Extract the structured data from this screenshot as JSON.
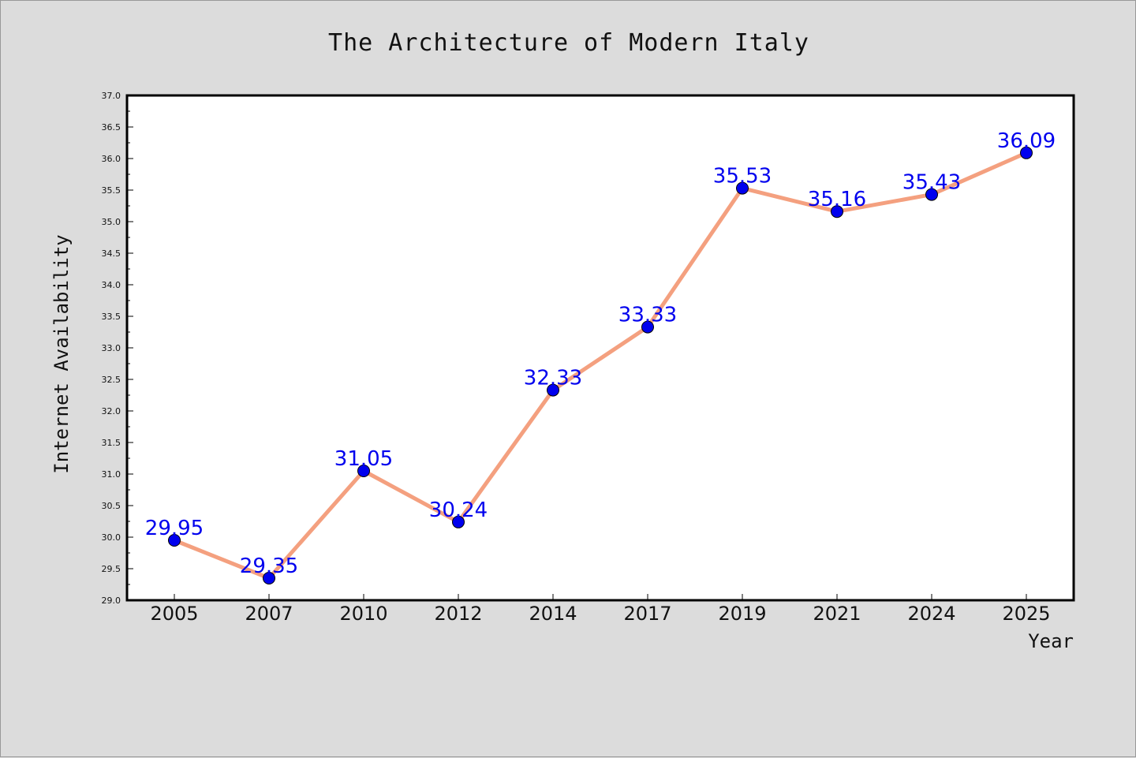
{
  "chart_data": {
    "type": "line",
    "title": "The Architecture of Modern Italy",
    "xlabel": "Year",
    "ylabel": "Internet Availability",
    "categories": [
      "2005",
      "2007",
      "2010",
      "2012",
      "2014",
      "2017",
      "2019",
      "2021",
      "2024",
      "2025"
    ],
    "series": [
      {
        "values": [
          29.95,
          29.35,
          31.05,
          30.24,
          32.33,
          33.33,
          35.53,
          35.16,
          35.43,
          36.09
        ],
        "data_labels": [
          "29.95",
          "29.35",
          "31.05",
          "30.24",
          "32.33",
          "33.33",
          "35.53",
          "35.16",
          "35.43",
          "36.09"
        ],
        "line_color": "#f4a07f",
        "marker_color": "#0000ee",
        "label_color": "#0000ee"
      }
    ],
    "ylim": [
      29.0,
      37.0
    ],
    "yticks": [
      "29.0",
      "29.5",
      "30.0",
      "30.5",
      "31.0",
      "31.5",
      "32.0",
      "32.5",
      "33.0",
      "33.5",
      "34.0",
      "34.5",
      "35.0",
      "35.5",
      "36.0",
      "36.5",
      "37.0"
    ],
    "grid": false,
    "legend": "none",
    "colors": {
      "figure_background": "#dcdcdc",
      "plot_background": "#ffffff",
      "frame": "#000000"
    }
  }
}
